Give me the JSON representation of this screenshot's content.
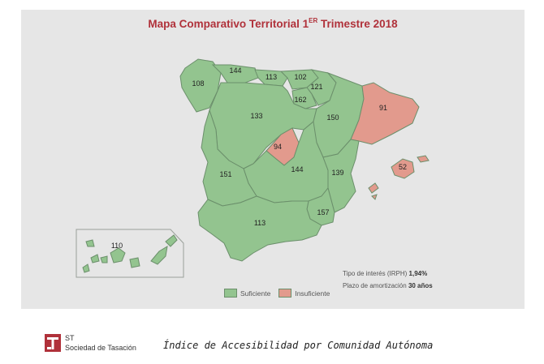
{
  "title": {
    "main": "Mapa Comparativo Territorial 1",
    "sup": "ER",
    "rest": " Trimestre 2018"
  },
  "regions": [
    {
      "id": "galicia",
      "value": "108",
      "status": "suficiente"
    },
    {
      "id": "asturias",
      "value": "144",
      "status": "suficiente"
    },
    {
      "id": "cantabria",
      "value": "113",
      "status": "suficiente"
    },
    {
      "id": "pais-vasco",
      "value": "102",
      "status": "suficiente"
    },
    {
      "id": "navarra",
      "value": "121",
      "status": "suficiente"
    },
    {
      "id": "la-rioja",
      "value": "162",
      "status": "suficiente"
    },
    {
      "id": "castilla-leon",
      "value": "133",
      "status": "suficiente"
    },
    {
      "id": "aragon",
      "value": "150",
      "status": "suficiente"
    },
    {
      "id": "cataluna",
      "value": "91",
      "status": "insuficiente"
    },
    {
      "id": "madrid",
      "value": "94",
      "status": "insuficiente"
    },
    {
      "id": "castilla-la-mancha",
      "value": "144",
      "status": "suficiente"
    },
    {
      "id": "extremadura",
      "value": "151",
      "status": "suficiente"
    },
    {
      "id": "comunidad-valenciana",
      "value": "139",
      "status": "suficiente"
    },
    {
      "id": "baleares",
      "value": "52",
      "status": "insuficiente"
    },
    {
      "id": "murcia",
      "value": "157",
      "status": "suficiente"
    },
    {
      "id": "andalucia",
      "value": "113",
      "status": "suficiente"
    },
    {
      "id": "canarias",
      "value": "110",
      "status": "suficiente"
    }
  ],
  "legend": {
    "suficiente": "Suficiente",
    "insuficiente": "Insuficiente"
  },
  "colors": {
    "suficiente": "#93c48f",
    "insuficiente": "#e29a8d",
    "title": "#b0313a"
  },
  "notes": {
    "interest_label": "Tipo de interés (IRPH) ",
    "interest_value": "1,94%",
    "term_label": "Plazo de amortización ",
    "term_value": "30 años"
  },
  "footer": {
    "logo_icon": "st-logo-icon",
    "logo_st": "ST",
    "logo_name": "Sociedad de Tasación",
    "caption": "Índice de Accesibilidad por Comunidad Autónoma"
  }
}
